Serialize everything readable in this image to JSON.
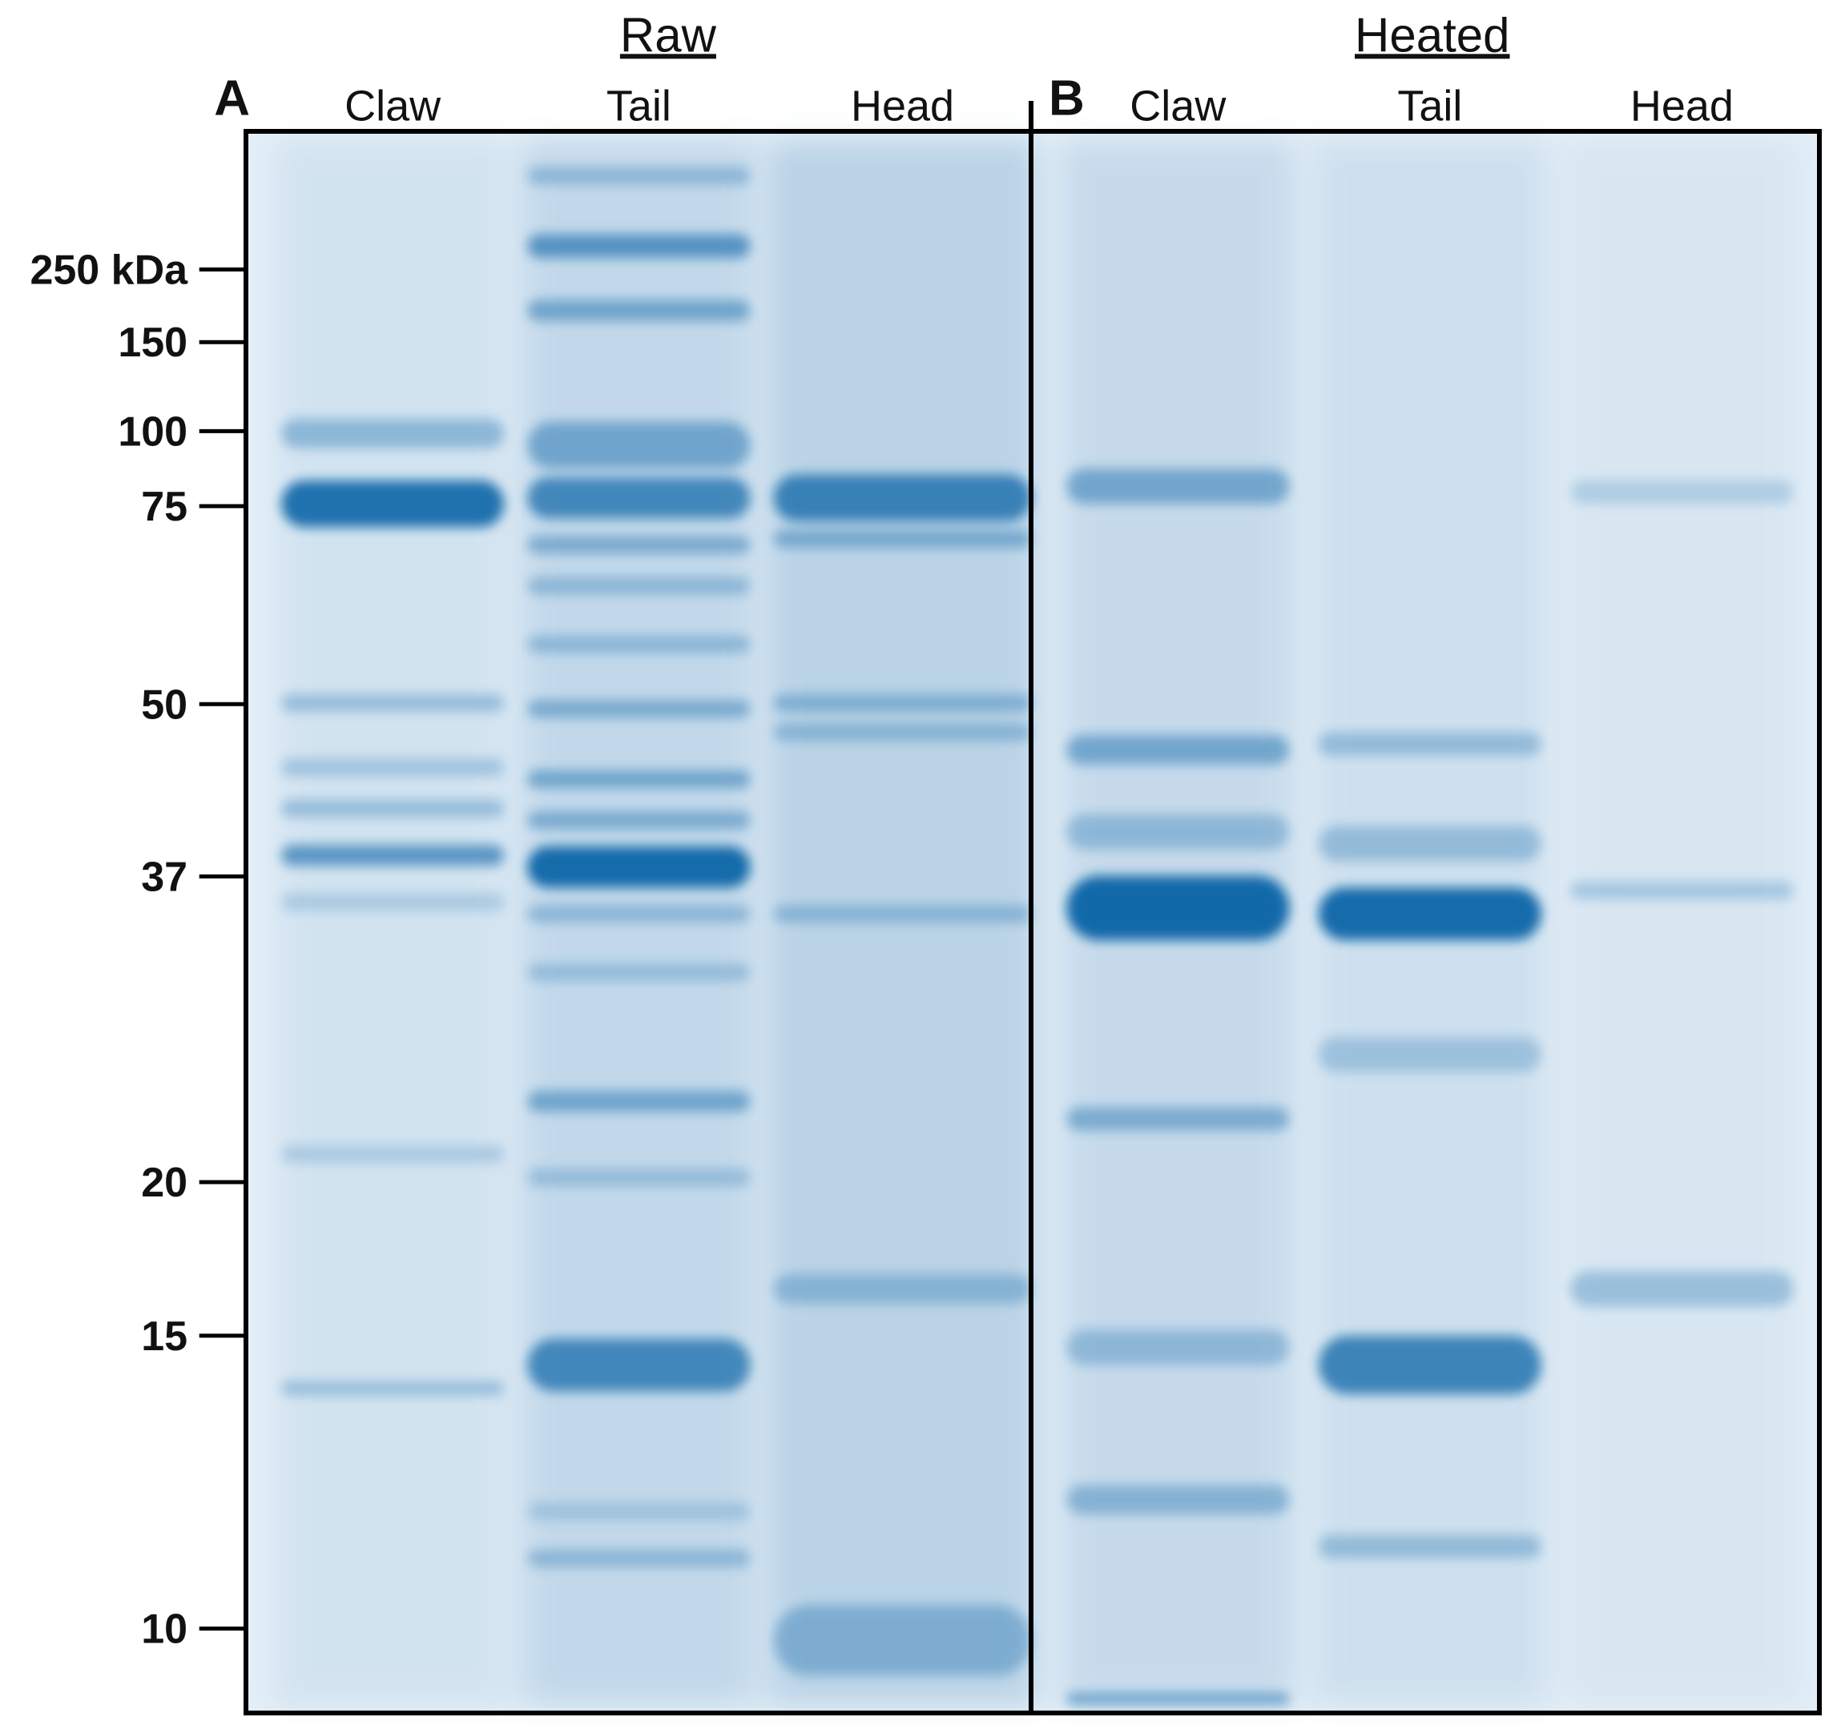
{
  "panels": [
    {
      "label": "A",
      "group": "Raw",
      "lanes": [
        "Claw",
        "Tail",
        "Head"
      ]
    },
    {
      "label": "B",
      "group": "Heated",
      "lanes": [
        "Claw",
        "Tail",
        "Head"
      ]
    }
  ],
  "markers": [
    "250 kDa",
    "150",
    "100",
    "75",
    "50",
    "37",
    "20",
    "15",
    "10"
  ]
}
